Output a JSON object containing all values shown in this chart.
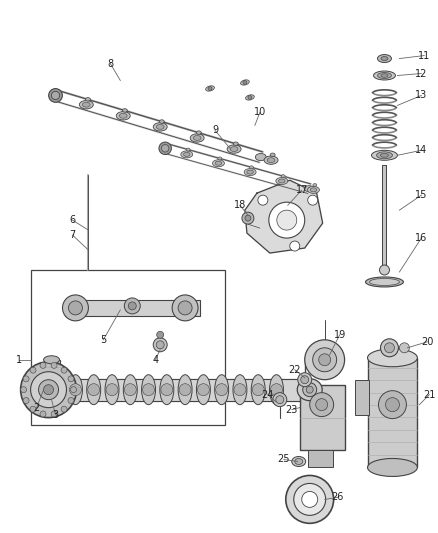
{
  "bg_color": "#ffffff",
  "line_color": "#444444",
  "text_color": "#222222",
  "leader_color": "#666666",
  "fig_width": 4.38,
  "fig_height": 5.33,
  "dpi": 100
}
